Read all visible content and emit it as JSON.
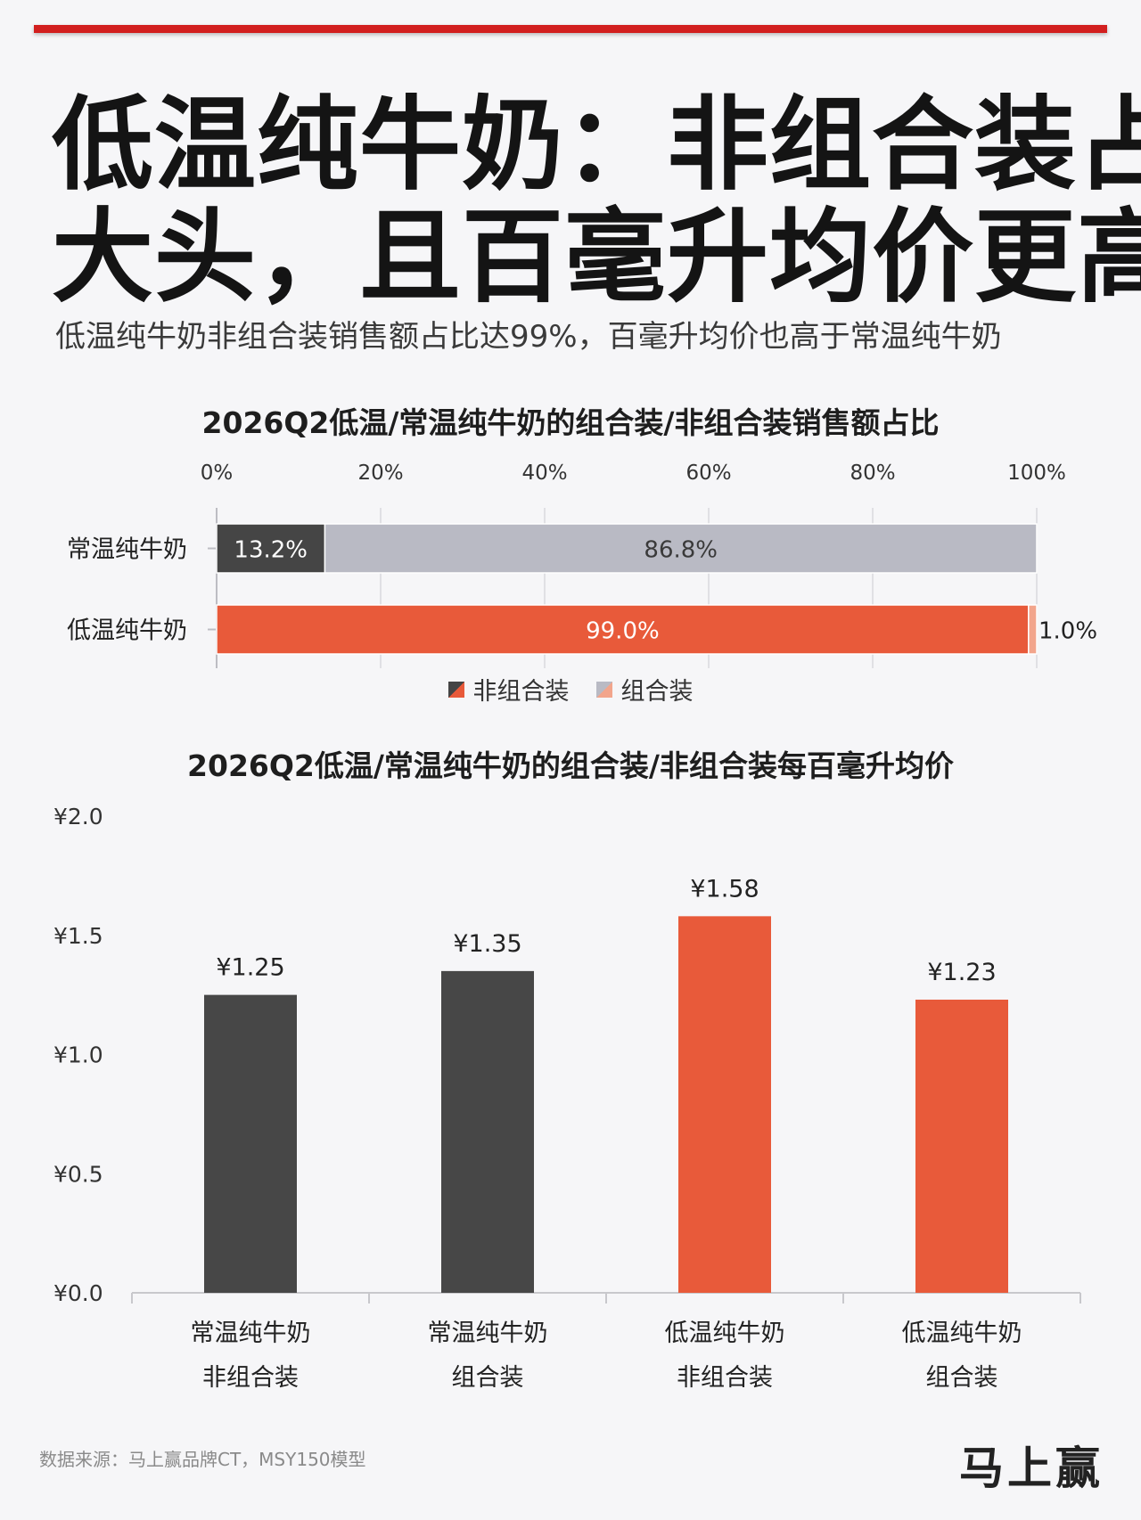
{
  "headline": {
    "line1": "低温纯牛奶：非组合装占",
    "line2": "大头，且百毫升均价更高"
  },
  "subtitle": "低温纯牛奶非组合装销售额占比达99%，百毫升均价也高于常温纯牛奶",
  "chart_data": [
    {
      "type": "bar",
      "orientation": "horizontal-stacked",
      "title": "2026Q2低温/常温纯牛奶的组合装/非组合装销售额占比",
      "categories": [
        "常温纯牛奶",
        "低温纯牛奶"
      ],
      "series": [
        {
          "name": "非组合装",
          "values": [
            13.2,
            99.0
          ],
          "labels": [
            "13.2%",
            "99.0%"
          ]
        },
        {
          "name": "组合装",
          "values": [
            86.8,
            1.0
          ],
          "labels": [
            "86.8%",
            "1.0%"
          ]
        }
      ],
      "xlim": [
        0,
        100
      ],
      "xticks": [
        "0%",
        "20%",
        "40%",
        "60%",
        "80%",
        "100%"
      ],
      "xaxis_position": "top",
      "grid": true,
      "legend_position": "bottom-center",
      "colors": {
        "常温纯牛奶": [
          "#454545",
          "#b9bac4"
        ],
        "低温纯牛奶": [
          "#e85a3a",
          "#f2a58c"
        ]
      }
    },
    {
      "type": "bar",
      "title": "2026Q2低温/常温纯牛奶的组合装/非组合装每百毫升均价",
      "categories": [
        [
          "常温纯牛奶",
          "非组合装"
        ],
        [
          "常温纯牛奶",
          "组合装"
        ],
        [
          "低温纯牛奶",
          "非组合装"
        ],
        [
          "低温纯牛奶",
          "组合装"
        ]
      ],
      "values": [
        1.25,
        1.35,
        1.58,
        1.23
      ],
      "labels": [
        "¥1.25",
        "¥1.35",
        "¥1.58",
        "¥1.23"
      ],
      "ylim": [
        0,
        2.0
      ],
      "yticks": [
        "¥0.0",
        "¥0.5",
        "¥1.0",
        "¥1.5",
        "¥2.0"
      ],
      "grid": false,
      "colors": [
        "#474747",
        "#474747",
        "#e85a3a",
        "#e85a3a"
      ]
    }
  ],
  "legend": {
    "noncombo": "非组合装",
    "combo": "组合装"
  },
  "footer": {
    "source": "数据来源：马上赢品牌CT，MSY150模型",
    "brand": "马上赢"
  }
}
